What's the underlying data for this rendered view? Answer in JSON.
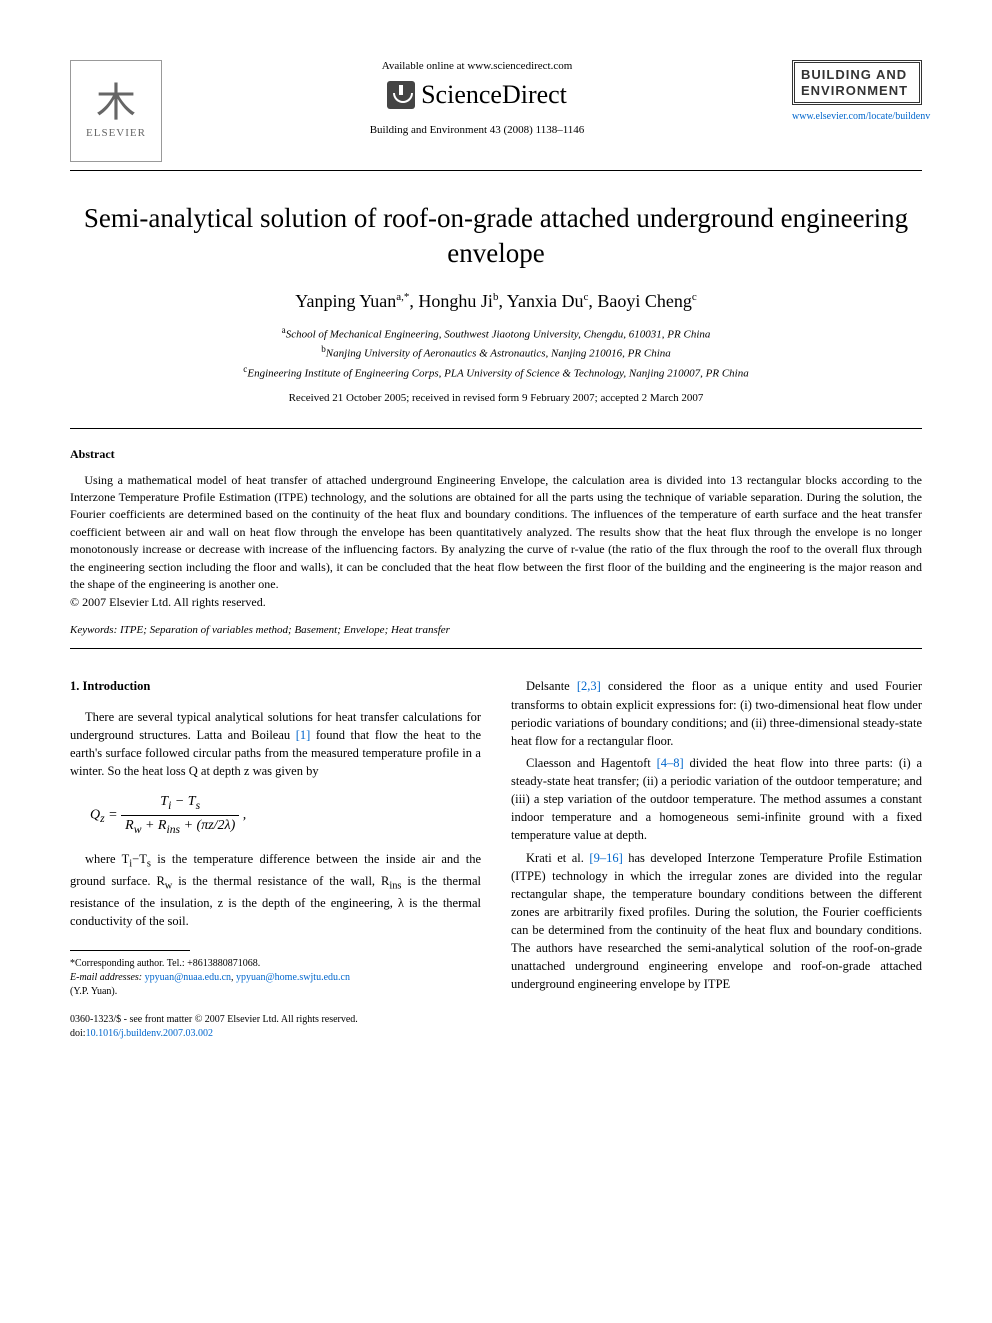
{
  "header": {
    "available_online": "Available online at www.sciencedirect.com",
    "sciencedirect": "ScienceDirect",
    "journal_ref": "Building and Environment 43 (2008) 1138–1146",
    "elsevier_label": "ELSEVIER",
    "journal_box_line1": "BUILDING AND",
    "journal_box_line2": "ENVIRONMENT",
    "journal_url": "www.elsevier.com/locate/buildenv"
  },
  "title": "Semi-analytical solution of roof-on-grade attached underground engineering envelope",
  "authors_html": "Yanping Yuan<sup>a,*</sup>, Honghu Ji<sup>b</sup>, Yanxia Du<sup>c</sup>, Baoyi Cheng<sup>c</sup>",
  "affiliations": {
    "a": "School of Mechanical Engineering, Southwest Jiaotong University, Chengdu, 610031, PR China",
    "b": "Nanjing University of Aeronautics & Astronautics, Nanjing 210016, PR China",
    "c": "Engineering Institute of Engineering Corps, PLA University of Science & Technology, Nanjing 210007, PR China"
  },
  "dates": "Received 21 October 2005; received in revised form 9 February 2007; accepted 2 March 2007",
  "abstract_heading": "Abstract",
  "abstract": "Using a mathematical model of heat transfer of attached underground Engineering Envelope, the calculation area is divided into 13 rectangular blocks according to the Interzone Temperature Profile Estimation (ITPE) technology, and the solutions are obtained for all the parts using the technique of variable separation. During the solution, the Fourier coefficients are determined based on the continuity of the heat flux and boundary conditions. The influences of the temperature of earth surface and the heat transfer coefficient between air and wall on heat flow through the envelope has been quantitatively analyzed. The results show that the heat flux through the envelope is no longer monotonously increase or decrease with increase of the influencing factors. By analyzing the curve of r-value (the ratio of the flux through the roof to the overall flux through the engineering section including the floor and walls), it can be concluded that the heat flow between the first floor of the building and the engineering is the major reason and the shape of the engineering is another one.",
  "copyright": "© 2007 Elsevier Ltd. All rights reserved.",
  "keywords_label": "Keywords:",
  "keywords": "ITPE; Separation of variables method; Basement; Envelope; Heat transfer",
  "section1_heading": "1. Introduction",
  "left_col": {
    "p1a": "There are several typical analytical solutions for heat transfer calculations for underground structures. Latta and Boileau ",
    "ref1": "[1]",
    "p1b": " found that flow the heat to the earth's surface followed circular paths from the measured temperature profile in a winter. So the heat loss Q at depth z was given by",
    "p2a": "where T",
    "p2b": "−T",
    "p2c": " is the temperature difference between the inside air and the ground surface. R",
    "p2d": " is the thermal resistance of the wall, R",
    "p2e": " is the thermal resistance of the insulation, z is the depth of the engineering, λ is the thermal conductivity of the soil."
  },
  "equation": {
    "lhs": "Q",
    "lhs_sub": "z",
    "eq": " = ",
    "num": "T<sub>i</sub> − T<sub>s</sub>",
    "den": "R<sub>w</sub> + R<sub>ins</sub> + (πz/2λ)"
  },
  "right_col": {
    "p1a": "Delsante ",
    "ref23": "[2,3]",
    "p1b": " considered the floor as a unique entity and used Fourier transforms to obtain explicit expressions for: (i) two-dimensional heat flow under periodic variations of boundary conditions; and (ii) three-dimensional steady-state heat flow for a rectangular floor.",
    "p2a": "Claesson and Hagentoft ",
    "ref48": "[4–8]",
    "p2b": " divided the heat flow into three parts: (i) a steady-state heat transfer; (ii) a periodic variation of the outdoor temperature; and (iii) a step variation of the outdoor temperature. The method assumes a constant indoor temperature and a homogeneous semi-infinite ground with a fixed temperature value at depth.",
    "p3a": "Krati et al. ",
    "ref916": "[9–16]",
    "p3b": " has developed Interzone Temperature Profile Estimation (ITPE) technology in which the irregular zones are divided into the regular rectangular shape, the temperature boundary conditions between the different zones are arbitrarily fixed profiles. During the solution, the Fourier coefficients can be determined from the continuity of the heat flux and boundary conditions. The authors have researched the semi-analytical solution of the roof-on-grade unattached underground engineering envelope and roof-on-grade attached underground engineering envelope by ITPE"
  },
  "footnote": {
    "corresponding": "*Corresponding author. Tel.: +8613880871068.",
    "email_label": "E-mail addresses:",
    "email1": "ypyuan@nuaa.edu.cn",
    "email2": "ypyuan@home.swjtu.edu.cn",
    "author_paren": "(Y.P. Yuan)."
  },
  "bottom": {
    "front_matter": "0360-1323/$ - see front matter © 2007 Elsevier Ltd. All rights reserved.",
    "doi_label": "doi:",
    "doi": "10.1016/j.buildenv.2007.03.002"
  }
}
